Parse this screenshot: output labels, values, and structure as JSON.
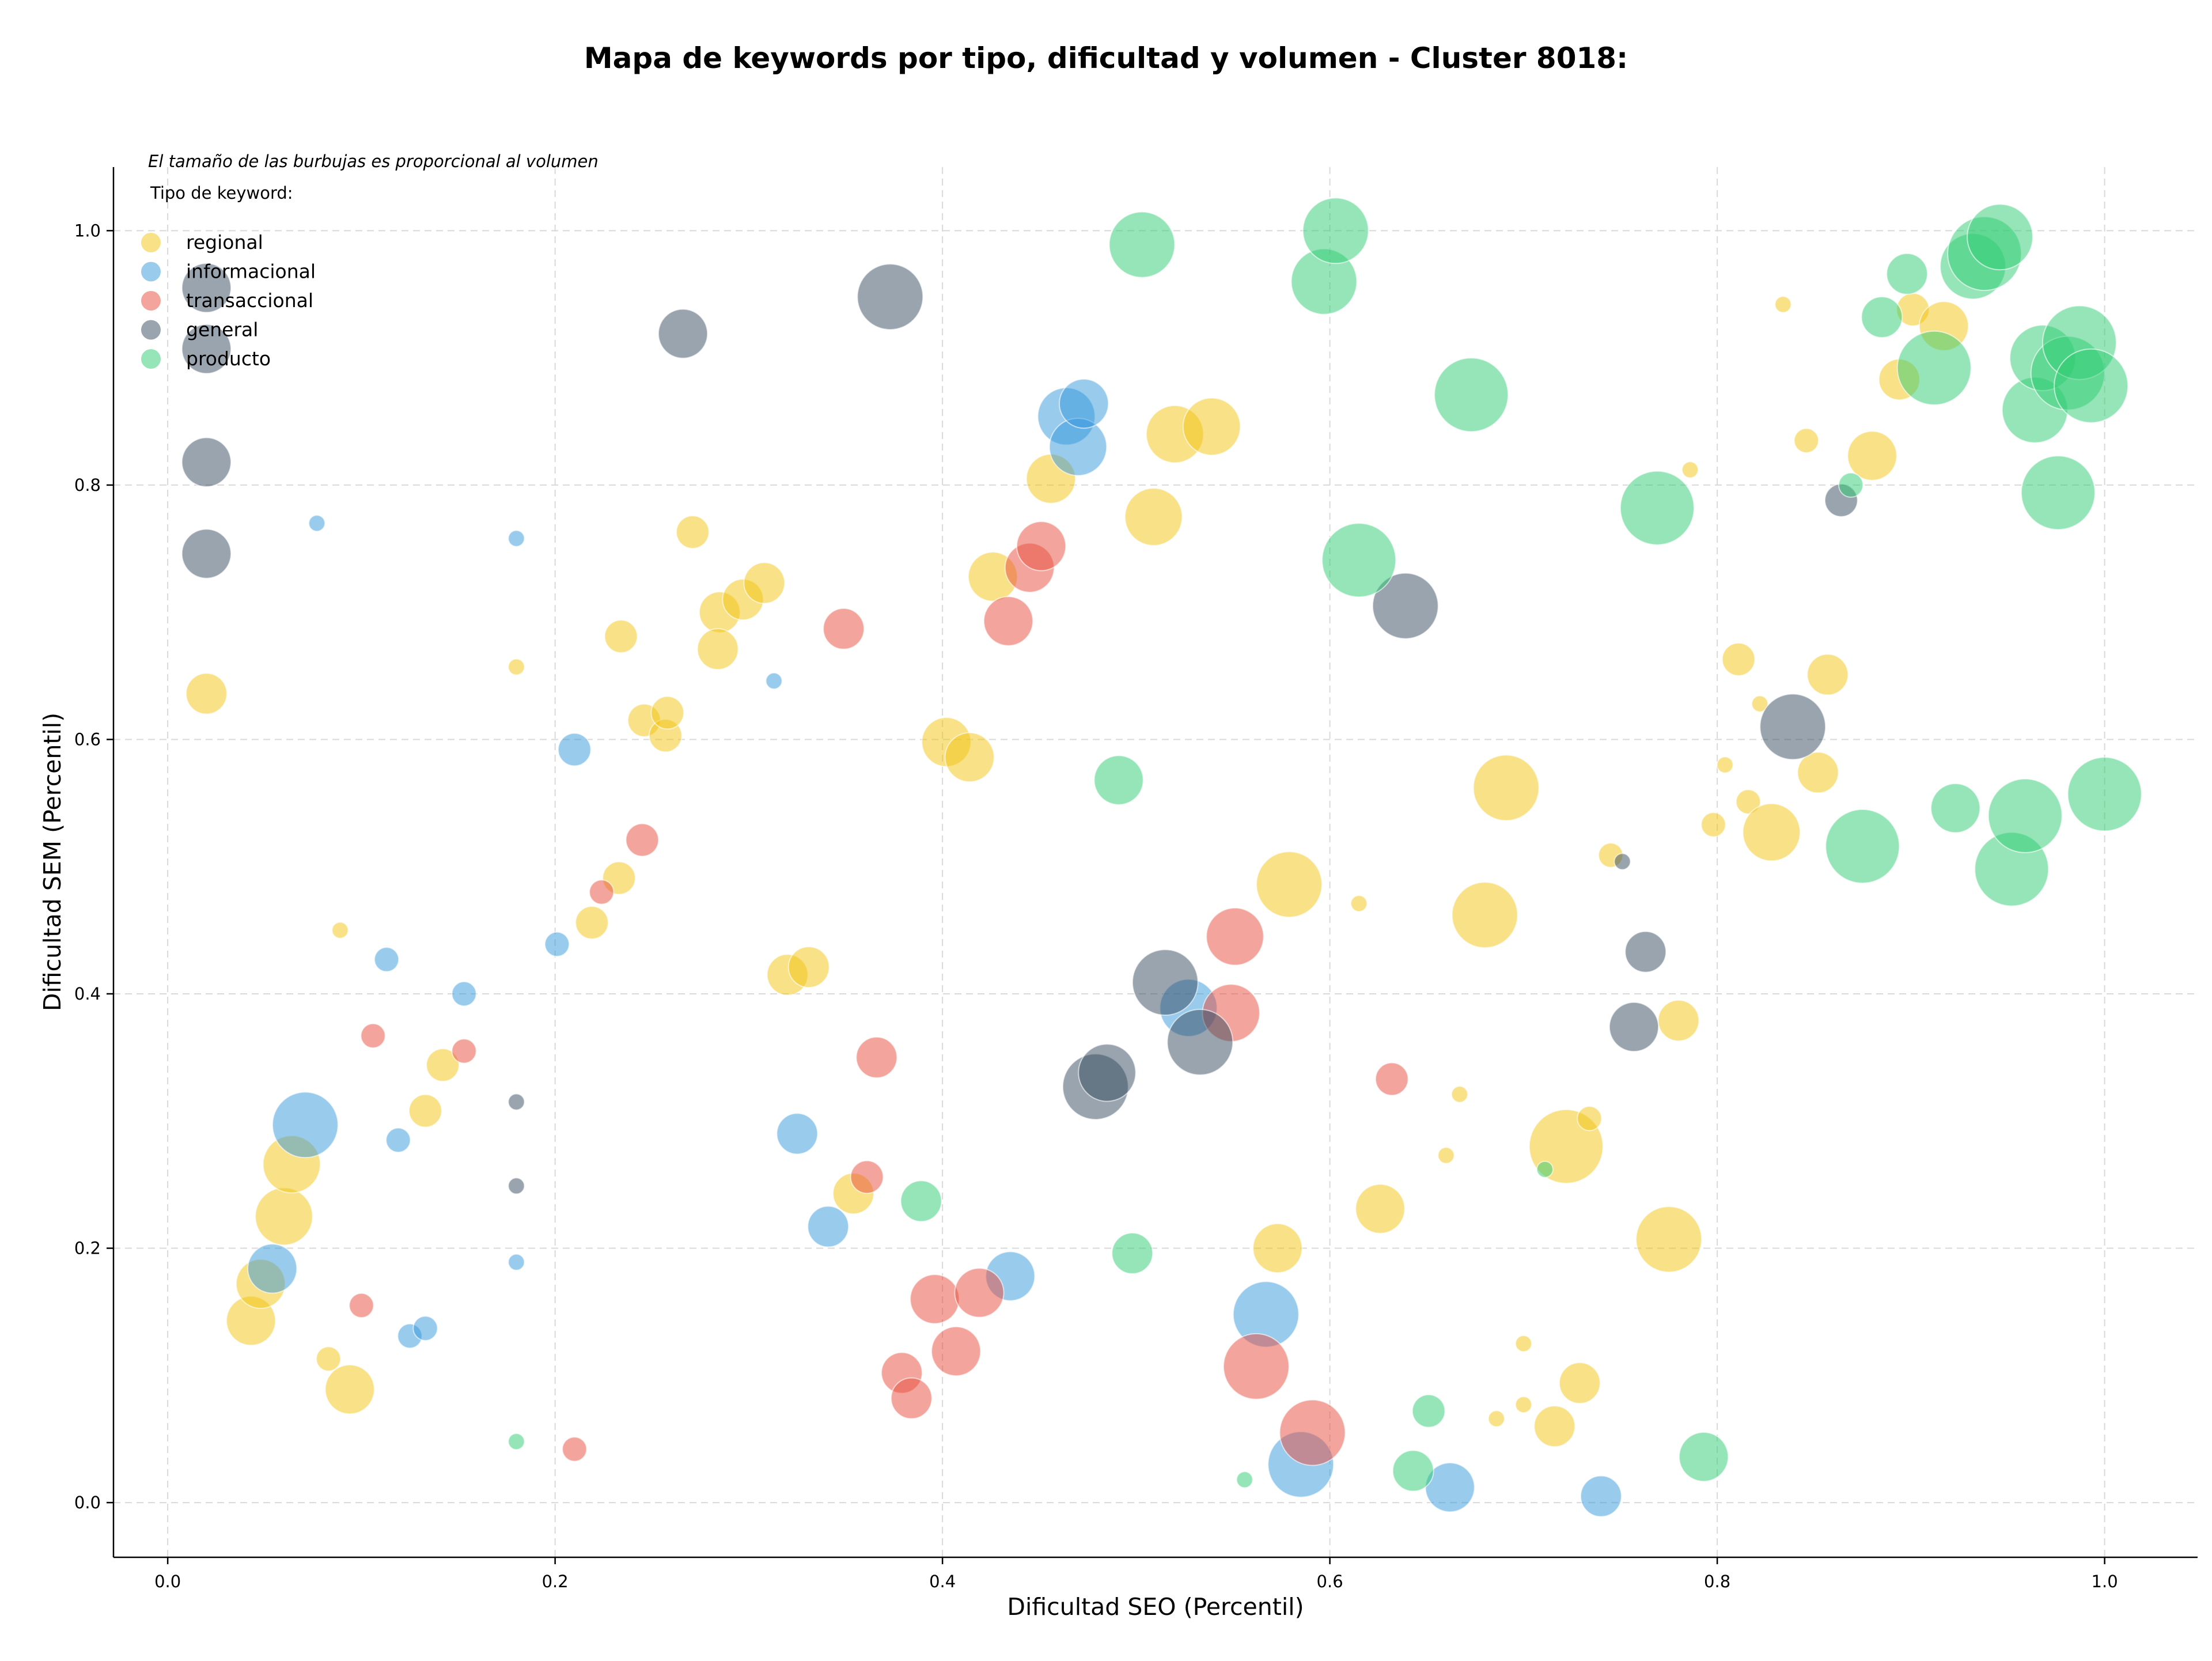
{
  "chart_data": {
    "type": "scatter",
    "title": "Mapa de keywords por tipo, dificultad y volumen - Cluster 8018:",
    "xlabel": "Dificultad SEO (Percentil)",
    "ylabel": "Dificultad SEM (Percentil)",
    "note": "El tamaño de las burbujas es proporcional al volumen",
    "legend_title": "Tipo de keyword:",
    "legend_position": "top-left",
    "grid": true,
    "xlim": [
      -0.028,
      1.048
    ],
    "ylim": [
      -0.043,
      1.05
    ],
    "xticks": [
      "0.0",
      "0.2",
      "0.4",
      "0.6",
      "0.8",
      "1.0"
    ],
    "yticks": [
      "0.0",
      "0.2",
      "0.4",
      "0.6",
      "0.8",
      "1.0"
    ],
    "size_encoding": "volumen",
    "series": [
      {
        "name": "regional",
        "color": "#f1c40f",
        "points": [
          [
            0.02,
            0.636,
            4
          ],
          [
            0.043,
            0.143,
            5
          ],
          [
            0.048,
            0.172,
            5
          ],
          [
            0.06,
            0.225,
            6
          ],
          [
            0.064,
            0.266,
            6
          ],
          [
            0.083,
            0.113,
            2
          ],
          [
            0.094,
            0.089,
            5
          ],
          [
            0.089,
            0.45,
            1
          ],
          [
            0.133,
            0.308,
            3
          ],
          [
            0.142,
            0.344,
            3
          ],
          [
            0.18,
            0.657,
            1
          ],
          [
            0.219,
            0.456,
            3
          ],
          [
            0.233,
            0.491,
            3
          ],
          [
            0.234,
            0.681,
            3
          ],
          [
            0.246,
            0.615,
            3
          ],
          [
            0.257,
            0.603,
            3
          ],
          [
            0.258,
            0.621,
            3
          ],
          [
            0.271,
            0.763,
            3
          ],
          [
            0.285,
            0.7,
            4
          ],
          [
            0.284,
            0.671,
            4
          ],
          [
            0.297,
            0.71,
            4
          ],
          [
            0.308,
            0.723,
            4
          ],
          [
            0.32,
            0.415,
            4
          ],
          [
            0.331,
            0.421,
            4
          ],
          [
            0.354,
            0.243,
            4
          ],
          [
            0.402,
            0.598,
            5
          ],
          [
            0.414,
            0.586,
            5
          ],
          [
            0.426,
            0.728,
            5
          ],
          [
            0.456,
            0.805,
            5
          ],
          [
            0.509,
            0.775,
            6
          ],
          [
            0.52,
            0.84,
            6
          ],
          [
            0.539,
            0.846,
            6
          ],
          [
            0.573,
            0.2,
            5
          ],
          [
            0.579,
            0.486,
            7
          ],
          [
            0.615,
            0.471,
            1
          ],
          [
            0.626,
            0.231,
            5
          ],
          [
            0.66,
            0.273,
            1
          ],
          [
            0.667,
            0.321,
            1
          ],
          [
            0.68,
            0.462,
            7
          ],
          [
            0.691,
            0.562,
            7
          ],
          [
            0.686,
            0.066,
            1
          ],
          [
            0.7,
            0.125,
            1
          ],
          [
            0.7,
            0.077,
            1
          ],
          [
            0.716,
            0.06,
            4
          ],
          [
            0.722,
            0.28,
            8
          ],
          [
            0.729,
            0.094,
            4
          ],
          [
            0.734,
            0.302,
            2
          ],
          [
            0.745,
            0.509,
            2
          ],
          [
            0.775,
            0.207,
            7
          ],
          [
            0.78,
            0.379,
            4
          ],
          [
            0.786,
            0.812,
            1
          ],
          [
            0.798,
            0.533,
            2
          ],
          [
            0.804,
            0.58,
            1
          ],
          [
            0.811,
            0.663,
            3
          ],
          [
            0.816,
            0.551,
            2
          ],
          [
            0.822,
            0.628,
            1
          ],
          [
            0.828,
            0.527,
            6
          ],
          [
            0.834,
            0.942,
            1
          ],
          [
            0.846,
            0.835,
            2
          ],
          [
            0.852,
            0.574,
            4
          ],
          [
            0.857,
            0.651,
            4
          ],
          [
            0.88,
            0.823,
            5
          ],
          [
            0.894,
            0.883,
            4
          ],
          [
            0.901,
            0.938,
            3
          ],
          [
            0.917,
            0.925,
            5
          ]
        ]
      },
      {
        "name": "informacional",
        "color": "#3498db",
        "points": [
          [
            0.054,
            0.184,
            5
          ],
          [
            0.071,
            0.297,
            7
          ],
          [
            0.077,
            0.77,
            1
          ],
          [
            0.113,
            0.427,
            2
          ],
          [
            0.119,
            0.285,
            2
          ],
          [
            0.125,
            0.131,
            2
          ],
          [
            0.133,
            0.137,
            2
          ],
          [
            0.153,
            0.4,
            2
          ],
          [
            0.18,
            0.758,
            1
          ],
          [
            0.18,
            0.189,
            1
          ],
          [
            0.201,
            0.439,
            2
          ],
          [
            0.21,
            0.592,
            3
          ],
          [
            0.313,
            0.646,
            1
          ],
          [
            0.325,
            0.29,
            4
          ],
          [
            0.341,
            0.217,
            4
          ],
          [
            0.435,
            0.178,
            5
          ],
          [
            0.464,
            0.854,
            6
          ],
          [
            0.47,
            0.83,
            6
          ],
          [
            0.473,
            0.864,
            5
          ],
          [
            0.527,
            0.389,
            6
          ],
          [
            0.567,
            0.148,
            7
          ],
          [
            0.585,
            0.03,
            7
          ],
          [
            0.662,
            0.012,
            5
          ],
          [
            0.74,
            0.005,
            4
          ]
        ]
      },
      {
        "name": "transaccional",
        "color": "#e74c3c",
        "points": [
          [
            0.1,
            0.155,
            2
          ],
          [
            0.106,
            0.367,
            2
          ],
          [
            0.153,
            0.355,
            2
          ],
          [
            0.21,
            0.042,
            2
          ],
          [
            0.224,
            0.48,
            2
          ],
          [
            0.245,
            0.521,
            3
          ],
          [
            0.349,
            0.687,
            4
          ],
          [
            0.361,
            0.256,
            3
          ],
          [
            0.366,
            0.35,
            4
          ],
          [
            0.379,
            0.102,
            4
          ],
          [
            0.384,
            0.082,
            4
          ],
          [
            0.396,
            0.16,
            5
          ],
          [
            0.407,
            0.119,
            5
          ],
          [
            0.419,
            0.165,
            5
          ],
          [
            0.434,
            0.693,
            5
          ],
          [
            0.445,
            0.735,
            5
          ],
          [
            0.451,
            0.752,
            5
          ],
          [
            0.549,
            0.385,
            6
          ],
          [
            0.551,
            0.445,
            6
          ],
          [
            0.562,
            0.107,
            7
          ],
          [
            0.591,
            0.055,
            7
          ],
          [
            0.632,
            0.333,
            3
          ]
        ]
      },
      {
        "name": "general",
        "color": "#34495e",
        "points": [
          [
            0.02,
            0.955,
            5
          ],
          [
            0.02,
            0.907,
            5
          ],
          [
            0.02,
            0.818,
            5
          ],
          [
            0.02,
            0.746,
            5
          ],
          [
            0.18,
            0.315,
            1
          ],
          [
            0.18,
            0.249,
            1
          ],
          [
            0.266,
            0.919,
            5
          ],
          [
            0.373,
            0.948,
            7
          ],
          [
            0.479,
            0.327,
            7
          ],
          [
            0.485,
            0.338,
            6
          ],
          [
            0.515,
            0.409,
            7
          ],
          [
            0.533,
            0.362,
            7
          ],
          [
            0.639,
            0.705,
            7
          ],
          [
            0.751,
            0.504,
            1
          ],
          [
            0.757,
            0.374,
            5
          ],
          [
            0.763,
            0.433,
            4
          ],
          [
            0.839,
            0.61,
            7
          ],
          [
            0.864,
            0.788,
            3
          ]
        ]
      },
      {
        "name": "producto",
        "color": "#2ecc71",
        "points": [
          [
            0.18,
            0.048,
            1
          ],
          [
            0.389,
            0.237,
            4
          ],
          [
            0.491,
            0.568,
            5
          ],
          [
            0.498,
            0.196,
            4
          ],
          [
            0.503,
            0.989,
            7
          ],
          [
            0.556,
            0.018,
            1
          ],
          [
            0.597,
            0.96,
            7
          ],
          [
            0.603,
            1.0,
            7
          ],
          [
            0.615,
            0.741,
            8
          ],
          [
            0.643,
            0.025,
            4
          ],
          [
            0.651,
            0.072,
            3
          ],
          [
            0.673,
            0.871,
            8
          ],
          [
            0.711,
            0.262,
            1
          ],
          [
            0.769,
            0.782,
            8
          ],
          [
            0.793,
            0.036,
            5
          ],
          [
            0.869,
            0.8,
            2
          ],
          [
            0.875,
            0.516,
            8
          ],
          [
            0.885,
            0.932,
            4
          ],
          [
            0.898,
            0.966,
            4
          ],
          [
            0.912,
            0.892,
            8
          ],
          [
            0.923,
            0.546,
            5
          ],
          [
            0.932,
            0.972,
            7
          ],
          [
            0.938,
            0.982,
            8
          ],
          [
            0.946,
            0.995,
            7
          ],
          [
            0.952,
            0.498,
            8
          ],
          [
            0.959,
            0.54,
            8
          ],
          [
            0.964,
            0.859,
            7
          ],
          [
            0.968,
            0.9,
            7
          ],
          [
            0.976,
            0.794,
            8
          ],
          [
            0.981,
            0.888,
            8
          ],
          [
            0.987,
            0.912,
            8
          ],
          [
            0.993,
            0.878,
            8
          ],
          [
            1.0,
            0.557,
            8
          ]
        ]
      }
    ]
  }
}
